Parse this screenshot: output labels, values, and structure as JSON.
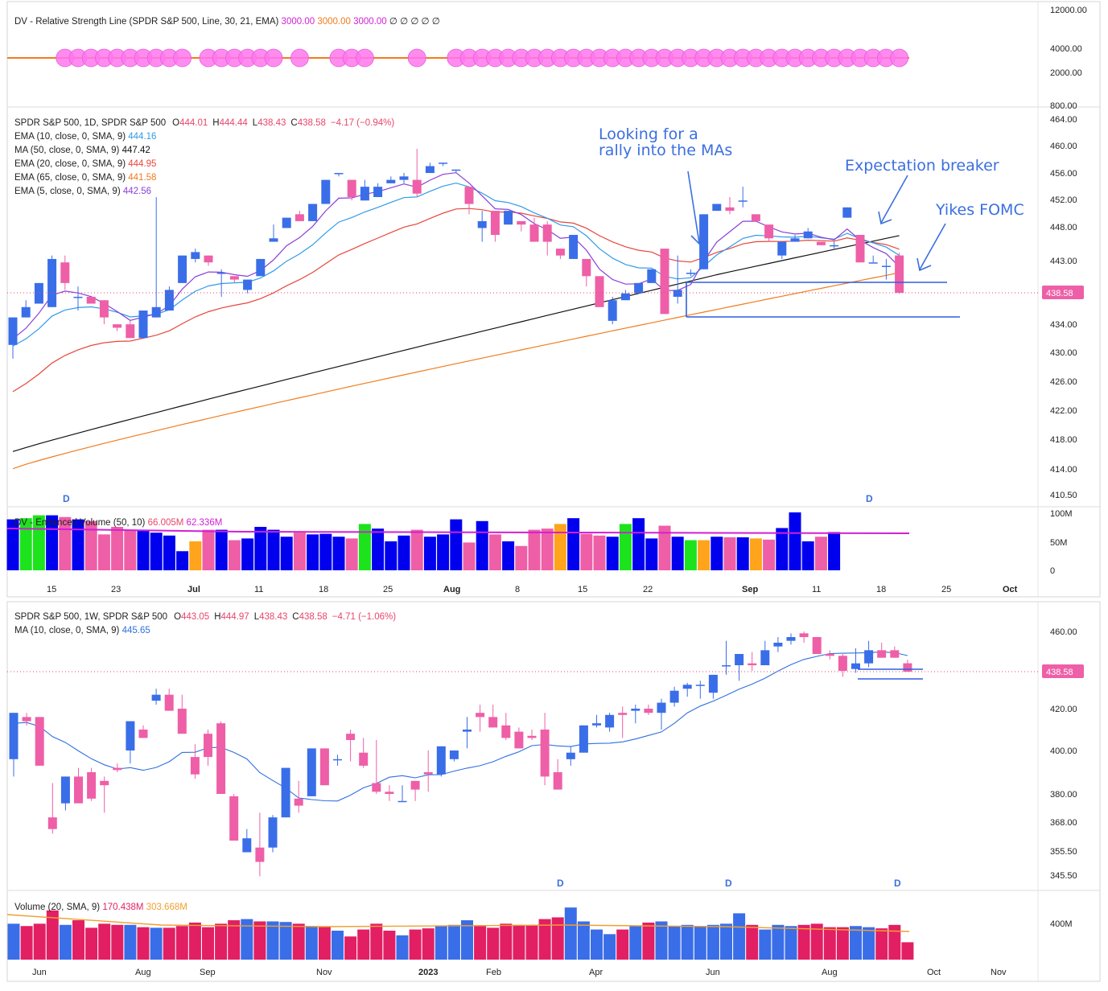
{
  "colors": {
    "up": "#3a6ee8",
    "down": "#ee5fa7",
    "ema10": "#2f9be8",
    "ma50": "#111111",
    "ema20": "#e8463c",
    "ema65": "#f07c1e",
    "ema5": "#8a3fd8",
    "annot": "#3b6fe0",
    "volma": "#d21fd6",
    "volblue": "#0000ee",
    "volgreen": "#1de31d",
    "volorange": "#ffa41b",
    "volpink": "#ee5fa7",
    "wvolblue": "#3a6ee8",
    "wvolred": "#e21f63",
    "wvolma": "#f0a030",
    "rsline": "#f47a1c",
    "rscircle": "#ff77ee",
    "dotted": "#e8466c"
  },
  "rs_panel": {
    "label": "DV - Relative Strength Line (SPDR S&P 500, Line, 30, 21, EMA)",
    "v1": "3000.00",
    "v2": "3000.00",
    "v3": "3000.00",
    "nulls": "∅ ∅ ∅ ∅ ∅",
    "axis": [
      "12000.00",
      "4000.00",
      "2000.00",
      "800.00"
    ]
  },
  "daily": {
    "header_title": "SPDR S&P 500, 1D, SPDR S&P 500",
    "o_label": "O",
    "o": "444.01",
    "h_label": "H",
    "h": "444.44",
    "l_label": "L",
    "l": "438.43",
    "c_label": "C",
    "c": "438.58",
    "chg": "−4.17 (−0.94%)",
    "indicators": [
      {
        "label": "EMA (10, close, 0, SMA, 9)",
        "value": "444.16",
        "color": "#2f9be8"
      },
      {
        "label": "MA (50, close, 0, SMA, 9)",
        "value": "447.42",
        "color": "#111111"
      },
      {
        "label": "EMA (20, close, 0, SMA, 9)",
        "value": "444.95",
        "color": "#e8463c"
      },
      {
        "label": "EMA (65, close, 0, SMA, 9)",
        "value": "441.58",
        "color": "#f07c1e"
      },
      {
        "label": "EMA (5, close, 0, SMA, 9)",
        "value": "442.56",
        "color": "#8a3fd8"
      }
    ],
    "price_badge": "438.58",
    "axis_labels": [
      "464.00",
      "460.00",
      "456.00",
      "452.00",
      "448.00",
      "443.00",
      "438.58",
      "434.00",
      "430.00",
      "426.00",
      "422.00",
      "418.00",
      "414.00",
      "410.50"
    ],
    "annotations": {
      "rally": [
        "Looking for a",
        "rally into the MAs"
      ],
      "breaker": "Expectation breaker",
      "fomc": "Yikes FOMC",
      "d_marks": [
        "D",
        "D"
      ]
    }
  },
  "dvol": {
    "label": "DV - Enhanced Volume (50, 10)",
    "v1": "66.005M",
    "v2": "62.336M",
    "axis": [
      "100M",
      "50M",
      "0"
    ],
    "xaxis": [
      "15",
      "23",
      "Jul",
      "11",
      "18",
      "25",
      "Aug",
      "8",
      "15",
      "22",
      "Sep",
      "11",
      "18",
      "25",
      "Oct"
    ]
  },
  "weekly": {
    "header_title": "SPDR S&P 500, 1W, SPDR S&P 500",
    "o_label": "O",
    "o": "443.05",
    "h_label": "H",
    "h": "444.97",
    "l_label": "L",
    "l": "438.43",
    "c_label": "C",
    "c": "438.58",
    "chg": "−4.71 (−1.06%)",
    "ma_label": "MA (10, close, 0, SMA, 9)",
    "ma_value": "445.65",
    "price_badge": "438.58",
    "axis_labels": [
      "460.00",
      "420.00",
      "400.00",
      "380.00",
      "368.00",
      "355.50",
      "345.50"
    ],
    "d_marks": [
      "D",
      "D",
      "D"
    ]
  },
  "wvol": {
    "label": "Volume (20, SMA, 9)",
    "v1": "170.438M",
    "v2": "303.668M",
    "axis": [
      "400M"
    ],
    "xaxis": [
      "Jun",
      "Aug",
      "Sep",
      "Nov",
      "2023",
      "Feb",
      "Apr",
      "Jun",
      "Aug",
      "Oct",
      "Nov"
    ]
  },
  "chart_data": [
    {
      "type": "candlestick",
      "title": "SPDR S&P 500, 1D",
      "ohlc": [
        [
          431,
          435,
          429,
          435
        ],
        [
          435,
          437.5,
          435,
          436.5
        ],
        [
          437,
          440,
          437,
          440
        ],
        [
          436.5,
          444,
          436.5,
          443.5
        ],
        [
          443,
          444,
          439,
          440
        ],
        [
          438,
          439.5,
          436,
          438
        ],
        [
          438,
          438,
          437,
          437
        ],
        [
          437.5,
          437.5,
          434,
          435
        ],
        [
          434,
          434,
          433,
          433.5
        ],
        [
          434,
          434.5432,
          432,
          432
        ],
        [
          432,
          436,
          432,
          436
        ],
        [
          435,
          452.5,
          435,
          436.5
        ],
        [
          436,
          439.5,
          436,
          439
        ],
        [
          440,
          444,
          440,
          444
        ],
        [
          443.5,
          445,
          443,
          444.5
        ],
        [
          444,
          444,
          442.5,
          443
        ],
        [
          441.5,
          442,
          438,
          441.5
        ],
        [
          441,
          441,
          440,
          440.5
        ],
        [
          439,
          440.5,
          438.5,
          440.5
        ],
        [
          441,
          443.5,
          441,
          443.5
        ],
        [
          446,
          448.5,
          446,
          446.5
        ],
        [
          448,
          449.5,
          448,
          449.5
        ],
        [
          450,
          450.5,
          449,
          449
        ],
        [
          449,
          451.5,
          449,
          451.5
        ],
        [
          451.5,
          455,
          451.5,
          455
        ],
        [
          456,
          456,
          455.5,
          456
        ],
        [
          455,
          455,
          452,
          452.5
        ],
        [
          452,
          455,
          452,
          454
        ],
        [
          452.5,
          454.5,
          452.5,
          454
        ],
        [
          454.5,
          455.5,
          454.5,
          455
        ],
        [
          455,
          456,
          454.5,
          455.5
        ],
        [
          455,
          459.5,
          452.5,
          453
        ],
        [
          456,
          457.5,
          456,
          457
        ],
        [
          457.5,
          457.5,
          457,
          457.5
        ],
        [
          456.5,
          456.5,
          456,
          456.5
        ],
        [
          454,
          454,
          450,
          451.5
        ],
        [
          448,
          450.5,
          446,
          449
        ],
        [
          450.5,
          450.5,
          446,
          447
        ],
        [
          448.5,
          450.5,
          448.5,
          450.5
        ],
        [
          449,
          449,
          447.5,
          448.5
        ],
        [
          448.5,
          449.5,
          446,
          446
        ],
        [
          448.5,
          449,
          444,
          446
        ],
        [
          445,
          445,
          443.5,
          444
        ],
        [
          443.5,
          447,
          443.5,
          447
        ],
        [
          443.5,
          443.5,
          439.5,
          441
        ],
        [
          441,
          441,
          436.5,
          436.5
        ],
        [
          434.5,
          438,
          434,
          437.5
        ],
        [
          437.5,
          439,
          437.5,
          438.5
        ],
        [
          438.5,
          440,
          438.5,
          440
        ],
        [
          440,
          442,
          440,
          442
        ],
        [
          445,
          445,
          435.5,
          435.5
        ],
        [
          438,
          444,
          437,
          439
        ],
        [
          441.5,
          442,
          441,
          441.5
        ],
        [
          442,
          450,
          442,
          450
        ],
        [
          450.5,
          451.5,
          450.5,
          451.5
        ],
        [
          451,
          452.5,
          450,
          450.5
        ],
        [
          452,
          454,
          451,
          452
        ],
        [
          450,
          450,
          449,
          449
        ],
        [
          448.5,
          448.5,
          446,
          446.5
        ],
        [
          444,
          446,
          443.5,
          446
        ],
        [
          446,
          447,
          446,
          446.5
        ],
        [
          446.5,
          448,
          446.5,
          447.5
        ],
        [
          446,
          446,
          445.5,
          445.5
        ],
        [
          445.5,
          446,
          445,
          445.5
        ],
        [
          449.5,
          451,
          449.5,
          451
        ],
        [
          447,
          447,
          443,
          443
        ],
        [
          443,
          444,
          443,
          443
        ],
        [
          442.5,
          443.5,
          440.5,
          442.5
        ],
        [
          444.01,
          444.44,
          438.43,
          438.58
        ]
      ]
    },
    {
      "type": "candlestick",
      "title": "SPDR S&P 500, 1W",
      "ohlc": [
        [
          396,
          418,
          388,
          418
        ],
        [
          416,
          418,
          412,
          414
        ],
        [
          416,
          416,
          393,
          393
        ],
        [
          370,
          385,
          363,
          365
        ],
        [
          376,
          388,
          373,
          388
        ],
        [
          388,
          392,
          376,
          376
        ],
        [
          390,
          392,
          377,
          378
        ],
        [
          386,
          388,
          372,
          384
        ],
        [
          392,
          394,
          390,
          391
        ],
        [
          400,
          414,
          394,
          414
        ],
        [
          410,
          412,
          406,
          406
        ],
        [
          424,
          430,
          422,
          427
        ],
        [
          427,
          430,
          419,
          419
        ],
        [
          420,
          427,
          408,
          408
        ],
        [
          397,
          403,
          387,
          389
        ],
        [
          408,
          410,
          393,
          397
        ],
        [
          413,
          414,
          380,
          380
        ],
        [
          379,
          380,
          360,
          360
        ],
        [
          355,
          365,
          355,
          361
        ],
        [
          357,
          372,
          345,
          351
        ],
        [
          357,
          371,
          355,
          370
        ],
        [
          370,
          392,
          370,
          392
        ],
        [
          378,
          386,
          372,
          375
        ],
        [
          379,
          400,
          379,
          401
        ],
        [
          401,
          401,
          384,
          384
        ],
        [
          396,
          398,
          393,
          396
        ],
        [
          408,
          410,
          395,
          405
        ],
        [
          399,
          406,
          392,
          393
        ],
        [
          385,
          405,
          380,
          381
        ],
        [
          381,
          384,
          377,
          380
        ],
        [
          377,
          384,
          377,
          377
        ],
        [
          386,
          386,
          377,
          382
        ],
        [
          390,
          400,
          381,
          389
        ],
        [
          389,
          402,
          388,
          402
        ],
        [
          396,
          400,
          395,
          400
        ],
        [
          409,
          416,
          401,
          410
        ],
        [
          418,
          422,
          409,
          416
        ],
        [
          416,
          422,
          411,
          411
        ],
        [
          412,
          418,
          405,
          406
        ],
        [
          409,
          411,
          401,
          401
        ],
        [
          407,
          410,
          405,
          406
        ],
        [
          410,
          418,
          384,
          388
        ],
        [
          390,
          396,
          382,
          382
        ],
        [
          396,
          402,
          393,
          399
        ],
        [
          399,
          412,
          399,
          412
        ],
        [
          412,
          417,
          411,
          413
        ],
        [
          411,
          418,
          409,
          417
        ],
        [
          418,
          421,
          406,
          417
        ],
        [
          419,
          422,
          413,
          420
        ],
        [
          420,
          422,
          417,
          418
        ],
        [
          418,
          425,
          410,
          423
        ],
        [
          423,
          431,
          421,
          429
        ],
        [
          430,
          433,
          426,
          432
        ],
        [
          432,
          434,
          425,
          432
        ],
        [
          428,
          437,
          425,
          437
        ],
        [
          442,
          455,
          437,
          442
        ],
        [
          442,
          448,
          434,
          448
        ],
        [
          443,
          449,
          439,
          442
        ],
        [
          442,
          455,
          442,
          450
        ],
        [
          452,
          457,
          449,
          454
        ],
        [
          455,
          459,
          453,
          457
        ],
        [
          459,
          460,
          454,
          457
        ],
        [
          457,
          457,
          448,
          448
        ],
        [
          448,
          450,
          445,
          447
        ],
        [
          447,
          448,
          436,
          439
        ],
        [
          440,
          451,
          438,
          443
        ],
        [
          443,
          455,
          441,
          450
        ],
        [
          450,
          454,
          446,
          446
        ],
        [
          450,
          452,
          446,
          446
        ],
        [
          443.05,
          444.97,
          438.43,
          438.58
        ]
      ]
    },
    {
      "type": "bar",
      "title": "DV - Enhanced Volume (50, 10)",
      "values": [
        88,
        90,
        95,
        95,
        92,
        88,
        85,
        62,
        75,
        70,
        68,
        65,
        60,
        33,
        50,
        70,
        70,
        52,
        55,
        75,
        70,
        58,
        65,
        62,
        63,
        58,
        55,
        80,
        72,
        50,
        60,
        70,
        58,
        62,
        88,
        48,
        85,
        62,
        50,
        42,
        70,
        72,
        80,
        90,
        63,
        60,
        58,
        80,
        90,
        55,
        77,
        58,
        52,
        52,
        58,
        57,
        57,
        55,
        53,
        73,
        100,
        50,
        58,
        66
      ]
    }
  ]
}
